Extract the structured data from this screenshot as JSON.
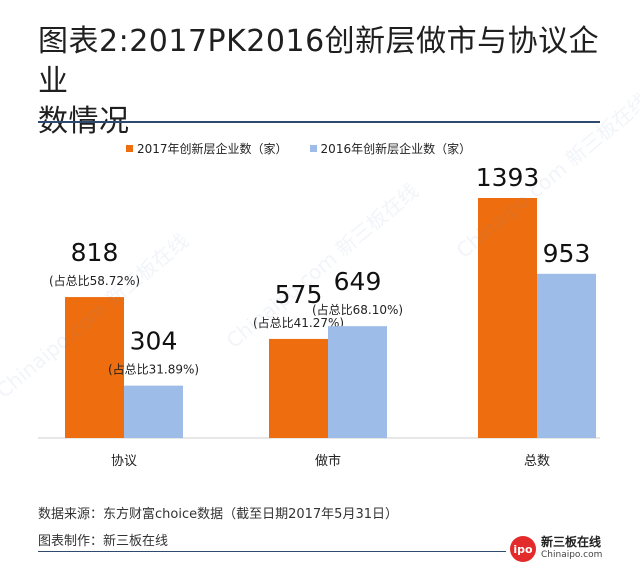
{
  "header": {
    "title_line1": "图表2:2017PK2016创新层做市与协议企业",
    "title_line2": "数情况"
  },
  "colors": {
    "series_2017": "#ED6D0F",
    "series_2016": "#9DBCE8",
    "rule": "#2F4A6F"
  },
  "chart_data": {
    "type": "bar",
    "categories": [
      "协议",
      "做市",
      "总数"
    ],
    "series": [
      {
        "name": "2017年创新层企业数（家）",
        "values": [
          818,
          575,
          1393
        ],
        "annotations": [
          "(占总比58.72%)",
          "(占总比41.27%)",
          ""
        ]
      },
      {
        "name": "2016年创新层企业数（家）",
        "values": [
          304,
          649,
          953
        ],
        "annotations": [
          "(占总比31.89%)",
          "(占总比68.10%)",
          ""
        ]
      }
    ],
    "ylim": [
      0,
      1500
    ],
    "grid": false,
    "legend": "top"
  },
  "footer": {
    "source": "数据来源：东方财富choice数据（截至日期2017年5月31日）",
    "credit": "图表制作：新三板在线",
    "logo_badge": "ipo",
    "logo_cn": "新三板在线",
    "logo_en": "Chinaipo.com"
  },
  "watermark_text": "Chinaipo.com 新三板在线"
}
